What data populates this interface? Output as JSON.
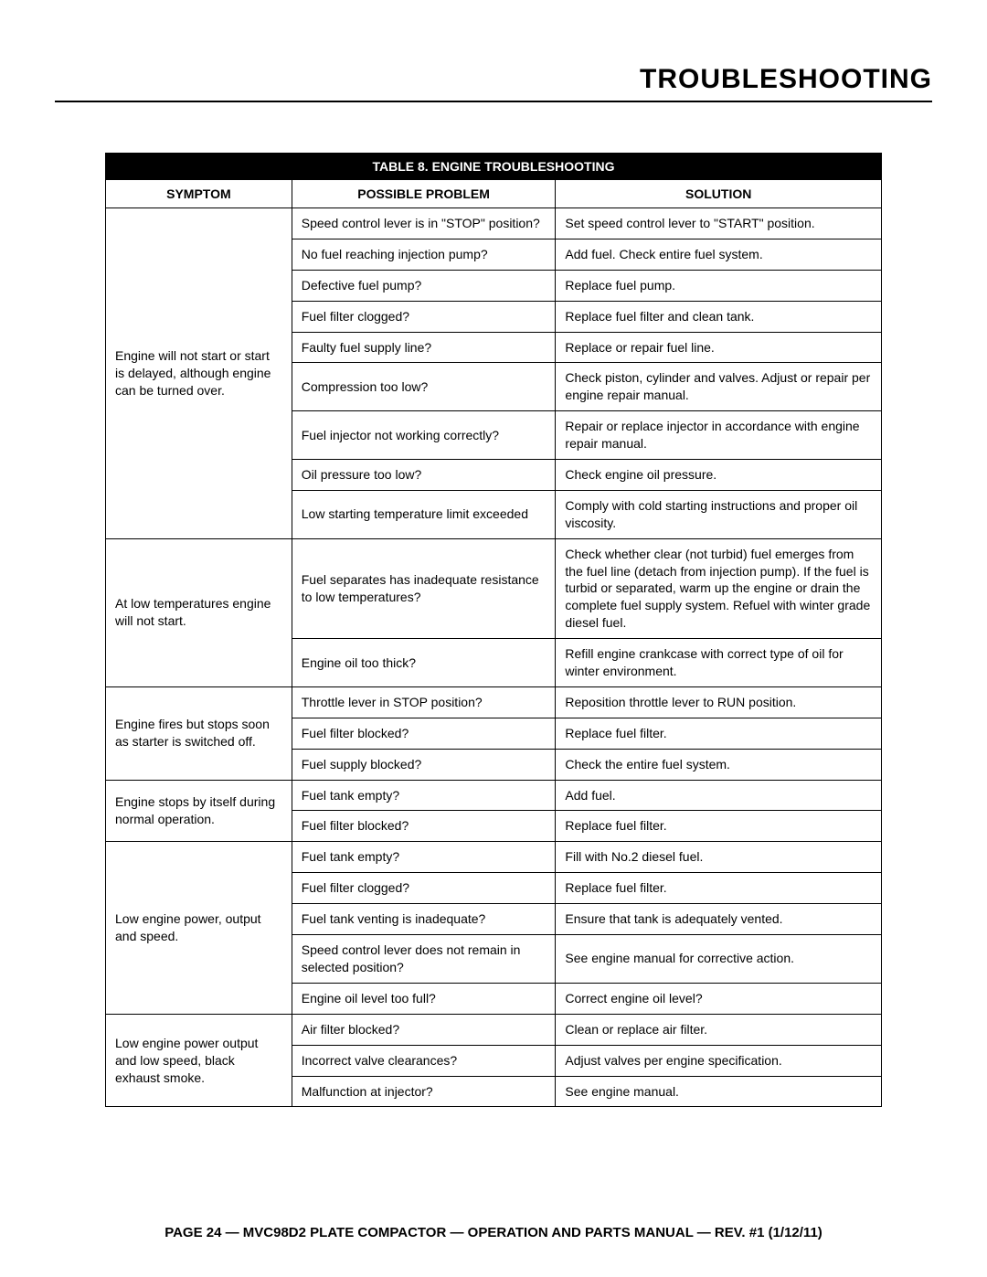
{
  "page_title": "TROUBLESHOOTING",
  "table_caption": "TABLE 8. ENGINE TROUBLESHOOTING",
  "columns": [
    "SYMPTOM",
    "POSSIBLE PROBLEM",
    "SOLUTION"
  ],
  "col_widths_pct": [
    24,
    34,
    42
  ],
  "groups": [
    {
      "symptom": "Engine will not start or start is delayed, although engine can be turned over.",
      "rows": [
        {
          "problem": "Speed control lever is in \"STOP\" position?",
          "solution": "Set speed control lever to \"START\" position."
        },
        {
          "problem": "No fuel reaching injection pump?",
          "solution": "Add fuel. Check entire fuel system."
        },
        {
          "problem": "Defective fuel pump?",
          "solution": "Replace fuel pump."
        },
        {
          "problem": "Fuel filter clogged?",
          "solution": "Replace fuel filter and clean tank."
        },
        {
          "problem": "Faulty fuel supply line?",
          "solution": "Replace or repair fuel line."
        },
        {
          "problem": "Compression too low?",
          "solution": "Check piston, cylinder and valves. Adjust or repair per engine repair manual."
        },
        {
          "problem": "Fuel injector not working correctly?",
          "solution": "Repair or replace injector in accordance with engine repair manual."
        },
        {
          "problem": "Oil pressure too low?",
          "solution": "Check engine oil pressure."
        },
        {
          "problem": "Low starting temperature limit exceeded",
          "solution": "Comply with cold starting instructions and proper oil viscosity."
        }
      ]
    },
    {
      "symptom": "At low temperatures engine will not start.",
      "rows": [
        {
          "problem": "Fuel separates has inadequate resistance to low temperatures?",
          "solution": "Check whether clear (not turbid) fuel emerges from the fuel line (detach from injection pump). If the fuel is turbid or separated, warm up the engine or drain the complete fuel supply system. Refuel with winter grade diesel fuel."
        },
        {
          "problem": "Engine oil too thick?",
          "solution": "Refill engine crankcase with correct type of oil for winter environment."
        }
      ]
    },
    {
      "symptom": "Engine fires but stops soon as starter is switched off.",
      "rows": [
        {
          "problem": "Throttle lever in STOP position?",
          "solution": "Reposition throttle lever to RUN position."
        },
        {
          "problem": "Fuel filter blocked?",
          "solution": "Replace fuel filter."
        },
        {
          "problem": "Fuel supply blocked?",
          "solution": "Check the entire fuel system."
        }
      ]
    },
    {
      "symptom": "Engine stops by itself during normal operation.",
      "rows": [
        {
          "problem": "Fuel tank empty?",
          "solution": "Add fuel."
        },
        {
          "problem": "Fuel filter blocked?",
          "solution": "Replace fuel filter."
        }
      ]
    },
    {
      "symptom": "Low engine power, output and speed.",
      "rows": [
        {
          "problem": "Fuel tank empty?",
          "solution": "Fill with No.2 diesel fuel."
        },
        {
          "problem": "Fuel filter clogged?",
          "solution": "Replace fuel filter."
        },
        {
          "problem": "Fuel tank venting is inadequate?",
          "solution": "Ensure that tank is adequately vented."
        },
        {
          "problem": "Speed control lever does not remain in selected position?",
          "solution": "See engine manual for corrective action."
        },
        {
          "problem": "Engine oil level too full?",
          "solution": "Correct engine oil level?"
        }
      ]
    },
    {
      "symptom": "Low engine power output and low speed, black exhaust smoke.",
      "rows": [
        {
          "problem": "Air filter blocked?",
          "solution": "Clean or replace air filter."
        },
        {
          "problem": "Incorrect valve clearances?",
          "solution": "Adjust valves per engine specification."
        },
        {
          "problem": "Malfunction at injector?",
          "solution": "See engine manual."
        }
      ]
    }
  ],
  "footer": "PAGE 24 — MVC98D2 PLATE COMPACTOR — OPERATION AND PARTS MANUAL — REV. #1 (1/12/11)",
  "colors": {
    "header_bg": "#000000",
    "header_fg": "#ffffff",
    "border": "#000000",
    "page_bg": "#ffffff",
    "text": "#000000"
  }
}
